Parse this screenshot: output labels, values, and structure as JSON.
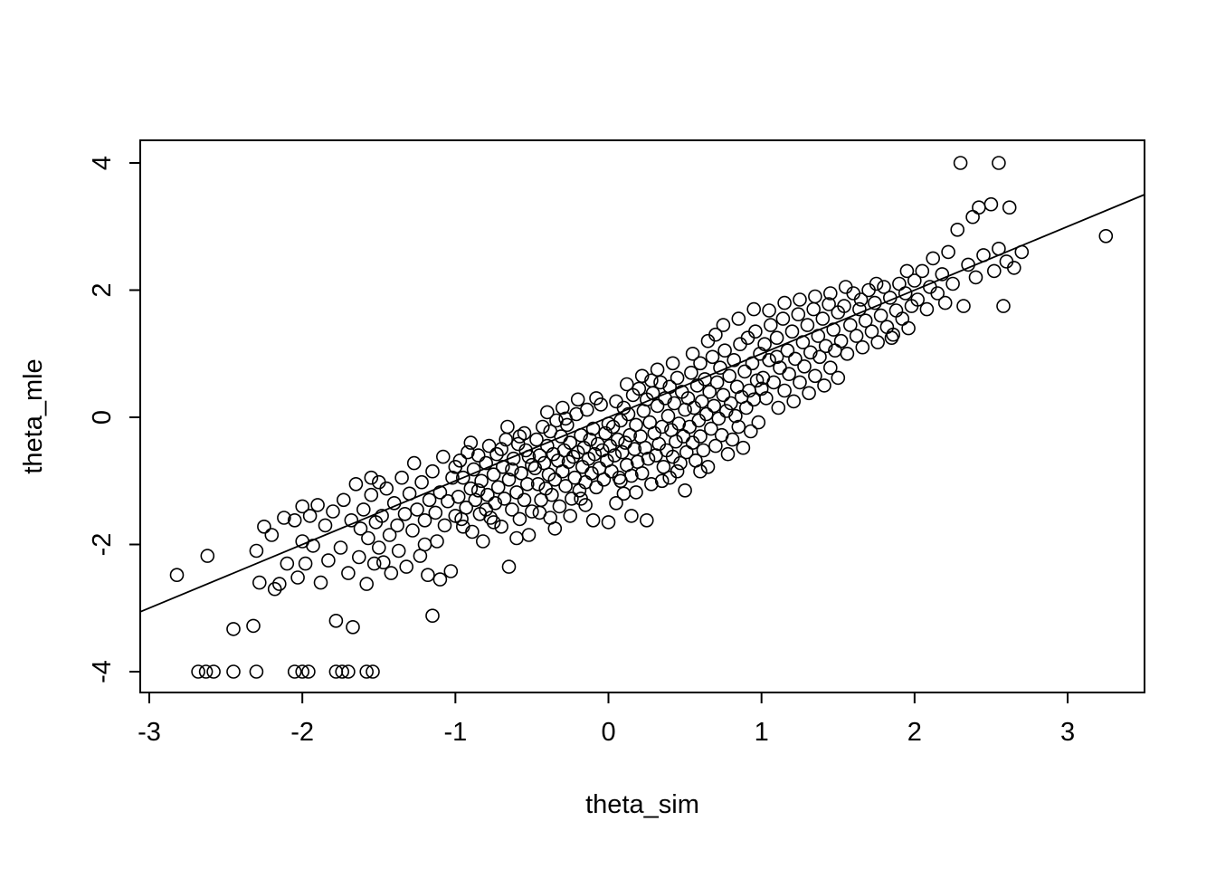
{
  "colors": {
    "foreground": "#000000",
    "background": "#ffffff"
  },
  "chart_data": {
    "type": "scatter",
    "title": "",
    "xlabel": "theta_sim",
    "ylabel": "theta_mle",
    "x_ticks": [
      -3,
      -2,
      -1,
      0,
      1,
      2,
      3
    ],
    "y_ticks": [
      -4,
      -2,
      0,
      2,
      4
    ],
    "xlim": [
      -3.06,
      3.5
    ],
    "ylim": [
      -4.33,
      4.36
    ],
    "grid": false,
    "legend": "none",
    "marker": "open-circle",
    "fit_line": {
      "description": "identity line y = x clipped to plot box",
      "x1": -3.06,
      "y1": -3.06,
      "x2": 3.5,
      "y2": 3.5
    },
    "clamped_floor_value": -4,
    "points": [
      [
        -2.82,
        -2.48
      ],
      [
        -2.62,
        -2.18
      ],
      [
        -2.45,
        -3.33
      ],
      [
        -2.32,
        -3.28
      ],
      [
        -2.3,
        -2.1
      ],
      [
        -2.28,
        -2.6
      ],
      [
        -2.2,
        -1.85
      ],
      [
        -2.18,
        -2.7
      ],
      [
        -2.12,
        -1.58
      ],
      [
        -2.1,
        -2.3
      ],
      [
        -2.05,
        -1.62
      ],
      [
        -2.03,
        -2.52
      ],
      [
        -2.0,
        -1.4
      ],
      [
        -2.0,
        -1.95
      ],
      [
        -2.15,
        -2.62
      ],
      [
        -2.25,
        -1.72
      ],
      [
        -1.98,
        -2.3
      ],
      [
        -1.95,
        -1.55
      ],
      [
        -1.93,
        -2.02
      ],
      [
        -1.9,
        -1.38
      ],
      [
        -1.88,
        -2.6
      ],
      [
        -1.85,
        -1.7
      ],
      [
        -1.83,
        -2.25
      ],
      [
        -1.8,
        -1.48
      ],
      [
        -1.78,
        -3.2
      ],
      [
        -1.75,
        -2.05
      ],
      [
        -1.73,
        -1.3
      ],
      [
        -1.7,
        -2.45
      ],
      [
        -1.68,
        -1.62
      ],
      [
        -1.67,
        -3.3
      ],
      [
        -1.65,
        -1.05
      ],
      [
        -1.63,
        -2.2
      ],
      [
        -1.6,
        -1.45
      ],
      [
        -1.58,
        -2.62
      ],
      [
        -1.57,
        -1.9
      ],
      [
        -1.55,
        -1.22
      ],
      [
        -1.53,
        -2.3
      ],
      [
        -1.52,
        -1.65
      ],
      [
        -1.5,
        -2.05
      ],
      [
        -1.5,
        -1.02
      ],
      [
        -1.55,
        -0.95
      ],
      [
        -1.62,
        -1.75
      ],
      [
        -1.48,
        -1.55
      ],
      [
        -1.47,
        -2.28
      ],
      [
        -1.45,
        -1.12
      ],
      [
        -1.43,
        -1.85
      ],
      [
        -1.42,
        -2.45
      ],
      [
        -1.4,
        -1.35
      ],
      [
        -1.38,
        -1.7
      ],
      [
        -1.37,
        -2.1
      ],
      [
        -1.35,
        -0.95
      ],
      [
        -1.33,
        -1.52
      ],
      [
        -1.32,
        -2.35
      ],
      [
        -1.3,
        -1.2
      ],
      [
        -1.28,
        -1.78
      ],
      [
        -1.27,
        -0.72
      ],
      [
        -1.25,
        -1.45
      ],
      [
        -1.23,
        -2.18
      ],
      [
        -1.22,
        -1.02
      ],
      [
        -1.2,
        -1.62
      ],
      [
        -1.18,
        -2.48
      ],
      [
        -1.17,
        -1.3
      ],
      [
        -1.15,
        -3.12
      ],
      [
        -1.15,
        -0.85
      ],
      [
        -1.13,
        -1.5
      ],
      [
        -1.12,
        -1.95
      ],
      [
        -1.1,
        -1.18
      ],
      [
        -1.08,
        -0.62
      ],
      [
        -1.07,
        -1.7
      ],
      [
        -1.05,
        -1.32
      ],
      [
        -1.03,
        -2.42
      ],
      [
        -1.02,
        -0.95
      ],
      [
        -1.0,
        -1.55
      ],
      [
        -1.0,
        -0.78
      ],
      [
        -1.1,
        -2.55
      ],
      [
        -1.2,
        -2.0
      ],
      [
        -0.98,
        -1.25
      ],
      [
        -0.97,
        -0.68
      ],
      [
        -0.96,
        -1.6
      ],
      [
        -0.95,
        -0.95
      ],
      [
        -0.93,
        -1.42
      ],
      [
        -0.92,
        -0.55
      ],
      [
        -0.9,
        -1.12
      ],
      [
        -0.89,
        -1.8
      ],
      [
        -0.88,
        -0.82
      ],
      [
        -0.87,
        -1.3
      ],
      [
        -0.85,
        -0.6
      ],
      [
        -0.84,
        -1.52
      ],
      [
        -0.83,
        -1.0
      ],
      [
        -0.82,
        -1.95
      ],
      [
        -0.8,
        -0.72
      ],
      [
        -0.79,
        -1.22
      ],
      [
        -0.78,
        -0.45
      ],
      [
        -0.77,
        -1.58
      ],
      [
        -0.75,
        -0.9
      ],
      [
        -0.74,
        -1.35
      ],
      [
        -0.73,
        -0.58
      ],
      [
        -0.72,
        -1.1
      ],
      [
        -0.7,
        -1.72
      ],
      [
        -0.69,
        -0.78
      ],
      [
        -0.68,
        -1.28
      ],
      [
        -0.67,
        -0.35
      ],
      [
        -0.65,
        -2.35
      ],
      [
        -0.65,
        -0.98
      ],
      [
        -0.63,
        -1.45
      ],
      [
        -0.62,
        -0.65
      ],
      [
        -0.6,
        -1.18
      ],
      [
        -0.59,
        -0.42
      ],
      [
        -0.58,
        -1.6
      ],
      [
        -0.57,
        -0.88
      ],
      [
        -0.55,
        -1.3
      ],
      [
        -0.54,
        -0.52
      ],
      [
        -0.53,
        -1.05
      ],
      [
        -0.52,
        -1.85
      ],
      [
        -0.5,
        -0.75
      ],
      [
        -0.5,
        -1.48
      ],
      [
        -0.55,
        -0.25
      ],
      [
        -0.6,
        -1.9
      ],
      [
        -0.66,
        -0.15
      ],
      [
        -0.7,
        -0.5
      ],
      [
        -0.75,
        -1.65
      ],
      [
        -0.8,
        -1.45
      ],
      [
        -0.85,
        -1.15
      ],
      [
        -0.9,
        -0.4
      ],
      [
        -0.95,
        -1.72
      ],
      [
        -0.63,
        -0.82
      ],
      [
        -0.58,
        -0.3
      ],
      [
        -0.52,
        -0.62
      ],
      [
        -0.48,
        -0.8
      ],
      [
        -0.47,
        -0.35
      ],
      [
        -0.46,
        -1.05
      ],
      [
        -0.45,
        -0.6
      ],
      [
        -0.44,
        -1.3
      ],
      [
        -0.43,
        -0.15
      ],
      [
        -0.42,
        -0.72
      ],
      [
        -0.41,
        -1.12
      ],
      [
        -0.4,
        -0.45
      ],
      [
        -0.39,
        -0.9
      ],
      [
        -0.38,
        -0.22
      ],
      [
        -0.37,
        -1.22
      ],
      [
        -0.36,
        -0.58
      ],
      [
        -0.35,
        -0.98
      ],
      [
        -0.34,
        -0.05
      ],
      [
        -0.33,
        -0.68
      ],
      [
        -0.32,
        -1.4
      ],
      [
        -0.31,
        -0.3
      ],
      [
        -0.3,
        -0.85
      ],
      [
        -0.29,
        -0.52
      ],
      [
        -0.28,
        -1.08
      ],
      [
        -0.27,
        -0.12
      ],
      [
        -0.26,
        -0.7
      ],
      [
        -0.25,
        -0.4
      ],
      [
        -0.24,
        -1.28
      ],
      [
        -0.23,
        -0.62
      ],
      [
        -0.22,
        -0.95
      ],
      [
        -0.21,
        0.05
      ],
      [
        -0.2,
        -0.55
      ],
      [
        -0.19,
        -1.15
      ],
      [
        -0.18,
        -0.28
      ],
      [
        -0.17,
        -0.78
      ],
      [
        -0.16,
        -0.48
      ],
      [
        -0.15,
        -1.02
      ],
      [
        -0.14,
        0.12
      ],
      [
        -0.13,
        -0.65
      ],
      [
        -0.12,
        -0.35
      ],
      [
        -0.11,
        -0.88
      ],
      [
        -0.1,
        -1.62
      ],
      [
        -0.1,
        -0.18
      ],
      [
        -0.09,
        -0.58
      ],
      [
        -0.08,
        -1.1
      ],
      [
        -0.07,
        -0.42
      ],
      [
        -0.06,
        -0.8
      ],
      [
        -0.05,
        0.2
      ],
      [
        -0.04,
        -0.52
      ],
      [
        -0.03,
        -0.98
      ],
      [
        -0.02,
        -0.25
      ],
      [
        -0.01,
        -0.68
      ],
      [
        0.0,
        -1.65
      ],
      [
        0.0,
        -0.1
      ],
      [
        -0.2,
        0.28
      ],
      [
        -0.25,
        -1.55
      ],
      [
        -0.3,
        0.15
      ],
      [
        -0.35,
        -1.75
      ],
      [
        -0.4,
        0.08
      ],
      [
        -0.45,
        -1.5
      ],
      [
        -0.15,
        -1.38
      ],
      [
        -0.08,
        0.3
      ],
      [
        -0.28,
        -0.02
      ],
      [
        -0.38,
        -1.58
      ],
      [
        -0.18,
        -1.28
      ],
      [
        0.01,
        -0.45
      ],
      [
        0.02,
        -0.85
      ],
      [
        0.03,
        -0.15
      ],
      [
        0.04,
        -0.6
      ],
      [
        0.05,
        0.25
      ],
      [
        0.06,
        -0.35
      ],
      [
        0.07,
        -0.95
      ],
      [
        0.08,
        -0.05
      ],
      [
        0.09,
        -0.55
      ],
      [
        0.1,
        -1.2
      ],
      [
        0.1,
        0.15
      ],
      [
        0.11,
        -0.4
      ],
      [
        0.12,
        -0.75
      ],
      [
        0.13,
        0.05
      ],
      [
        0.14,
        -0.28
      ],
      [
        0.15,
        -0.92
      ],
      [
        0.16,
        0.35
      ],
      [
        0.17,
        -0.5
      ],
      [
        0.18,
        -0.12
      ],
      [
        0.19,
        -0.7
      ],
      [
        0.2,
        0.45
      ],
      [
        0.21,
        -0.3
      ],
      [
        0.22,
        -0.88
      ],
      [
        0.23,
        0.1
      ],
      [
        0.24,
        -0.48
      ],
      [
        0.25,
        0.28
      ],
      [
        0.26,
        -0.65
      ],
      [
        0.27,
        -0.08
      ],
      [
        0.28,
        -1.05
      ],
      [
        0.29,
        0.38
      ],
      [
        0.3,
        -0.25
      ],
      [
        0.31,
        -0.6
      ],
      [
        0.32,
        0.18
      ],
      [
        0.33,
        -0.42
      ],
      [
        0.34,
        0.55
      ],
      [
        0.35,
        -0.15
      ],
      [
        0.36,
        -0.78
      ],
      [
        0.37,
        0.3
      ],
      [
        0.38,
        -0.52
      ],
      [
        0.39,
        0.02
      ],
      [
        0.4,
        -0.95
      ],
      [
        0.4,
        0.48
      ],
      [
        0.41,
        -0.2
      ],
      [
        0.42,
        -0.62
      ],
      [
        0.43,
        0.22
      ],
      [
        0.44,
        -0.38
      ],
      [
        0.45,
        0.62
      ],
      [
        0.46,
        -0.1
      ],
      [
        0.47,
        -0.72
      ],
      [
        0.48,
        0.4
      ],
      [
        0.49,
        -0.3
      ],
      [
        0.5,
        0.12
      ],
      [
        0.5,
        -1.15
      ],
      [
        0.05,
        -1.35
      ],
      [
        0.15,
        -1.55
      ],
      [
        0.25,
        -1.62
      ],
      [
        0.35,
        -1.0
      ],
      [
        0.45,
        -0.85
      ],
      [
        0.12,
        0.52
      ],
      [
        0.22,
        0.65
      ],
      [
        0.32,
        0.75
      ],
      [
        0.42,
        0.85
      ],
      [
        0.08,
        -1.0
      ],
      [
        0.18,
        -1.18
      ],
      [
        0.28,
        0.58
      ],
      [
        0.51,
        -0.55
      ],
      [
        0.52,
        0.3
      ],
      [
        0.53,
        -0.15
      ],
      [
        0.54,
        0.7
      ],
      [
        0.55,
        -0.4
      ],
      [
        0.56,
        0.15
      ],
      [
        0.57,
        -0.68
      ],
      [
        0.58,
        0.5
      ],
      [
        0.59,
        -0.05
      ],
      [
        0.6,
        0.85
      ],
      [
        0.6,
        -0.3
      ],
      [
        0.61,
        0.25
      ],
      [
        0.62,
        -0.52
      ],
      [
        0.63,
        0.6
      ],
      [
        0.64,
        0.05
      ],
      [
        0.65,
        -0.78
      ],
      [
        0.66,
        0.4
      ],
      [
        0.67,
        -0.18
      ],
      [
        0.68,
        0.95
      ],
      [
        0.69,
        0.18
      ],
      [
        0.7,
        -0.45
      ],
      [
        0.71,
        0.55
      ],
      [
        0.72,
        -0.02
      ],
      [
        0.73,
        0.78
      ],
      [
        0.74,
        -0.28
      ],
      [
        0.75,
        0.35
      ],
      [
        0.76,
        1.05
      ],
      [
        0.77,
        0.1
      ],
      [
        0.78,
        -0.58
      ],
      [
        0.79,
        0.65
      ],
      [
        0.8,
        0.22
      ],
      [
        0.81,
        -0.35
      ],
      [
        0.82,
        0.9
      ],
      [
        0.83,
        0.02
      ],
      [
        0.84,
        0.48
      ],
      [
        0.85,
        -0.15
      ],
      [
        0.86,
        1.15
      ],
      [
        0.87,
        0.32
      ],
      [
        0.88,
        -0.48
      ],
      [
        0.89,
        0.72
      ],
      [
        0.9,
        0.15
      ],
      [
        0.91,
        1.25
      ],
      [
        0.92,
        0.42
      ],
      [
        0.93,
        -0.22
      ],
      [
        0.94,
        0.85
      ],
      [
        0.95,
        0.28
      ],
      [
        0.96,
        1.35
      ],
      [
        0.97,
        0.58
      ],
      [
        0.98,
        -0.08
      ],
      [
        0.99,
        1.0
      ],
      [
        1.0,
        0.45
      ],
      [
        0.55,
        1.0
      ],
      [
        0.65,
        1.2
      ],
      [
        0.75,
        1.45
      ],
      [
        0.85,
        1.55
      ],
      [
        0.95,
        1.7
      ],
      [
        0.7,
        1.3
      ],
      [
        0.6,
        -0.85
      ],
      [
        1.01,
        0.62
      ],
      [
        1.02,
        1.15
      ],
      [
        1.03,
        0.3
      ],
      [
        1.05,
        0.9
      ],
      [
        1.06,
        1.45
      ],
      [
        1.08,
        0.55
      ],
      [
        1.1,
        1.25
      ],
      [
        1.11,
        0.15
      ],
      [
        1.12,
        0.78
      ],
      [
        1.14,
        1.55
      ],
      [
        1.15,
        0.42
      ],
      [
        1.17,
        1.05
      ],
      [
        1.18,
        0.68
      ],
      [
        1.2,
        1.35
      ],
      [
        1.21,
        0.25
      ],
      [
        1.22,
        0.92
      ],
      [
        1.24,
        1.62
      ],
      [
        1.25,
        0.55
      ],
      [
        1.27,
        1.18
      ],
      [
        1.28,
        0.8
      ],
      [
        1.3,
        1.45
      ],
      [
        1.31,
        0.38
      ],
      [
        1.32,
        1.02
      ],
      [
        1.34,
        1.7
      ],
      [
        1.35,
        0.65
      ],
      [
        1.37,
        1.28
      ],
      [
        1.38,
        0.95
      ],
      [
        1.4,
        1.55
      ],
      [
        1.41,
        0.5
      ],
      [
        1.42,
        1.12
      ],
      [
        1.44,
        1.78
      ],
      [
        1.45,
        0.78
      ],
      [
        1.47,
        1.38
      ],
      [
        1.48,
        1.05
      ],
      [
        1.5,
        1.65
      ],
      [
        1.5,
        0.62
      ],
      [
        1.05,
        1.68
      ],
      [
        1.15,
        1.8
      ],
      [
        1.25,
        1.85
      ],
      [
        1.35,
        1.9
      ],
      [
        1.45,
        1.95
      ],
      [
        1.1,
        0.95
      ],
      [
        1.52,
        1.2
      ],
      [
        1.54,
        1.75
      ],
      [
        1.56,
        1.0
      ],
      [
        1.58,
        1.45
      ],
      [
        1.6,
        1.95
      ],
      [
        1.62,
        1.28
      ],
      [
        1.64,
        1.7
      ],
      [
        1.66,
        1.1
      ],
      [
        1.68,
        1.52
      ],
      [
        1.7,
        2.0
      ],
      [
        1.72,
        1.35
      ],
      [
        1.74,
        1.8
      ],
      [
        1.76,
        1.18
      ],
      [
        1.78,
        1.6
      ],
      [
        1.8,
        2.05
      ],
      [
        1.82,
        1.42
      ],
      [
        1.84,
        1.88
      ],
      [
        1.86,
        1.3
      ],
      [
        1.88,
        1.68
      ],
      [
        1.9,
        2.1
      ],
      [
        1.92,
        1.55
      ],
      [
        1.94,
        1.95
      ],
      [
        1.96,
        1.4
      ],
      [
        1.98,
        1.75
      ],
      [
        2.0,
        2.15
      ],
      [
        1.55,
        2.05
      ],
      [
        1.65,
        1.85
      ],
      [
        1.75,
        2.1
      ],
      [
        1.85,
        1.25
      ],
      [
        1.95,
        2.3
      ],
      [
        2.02,
        1.85
      ],
      [
        2.05,
        2.3
      ],
      [
        2.08,
        1.7
      ],
      [
        2.1,
        2.05
      ],
      [
        2.12,
        2.5
      ],
      [
        2.15,
        1.95
      ],
      [
        2.18,
        2.25
      ],
      [
        2.2,
        1.8
      ],
      [
        2.22,
        2.6
      ],
      [
        2.25,
        2.1
      ],
      [
        2.28,
        2.95
      ],
      [
        2.3,
        4.0
      ],
      [
        2.32,
        1.75
      ],
      [
        2.35,
        2.4
      ],
      [
        2.38,
        3.15
      ],
      [
        2.4,
        2.2
      ],
      [
        2.42,
        3.3
      ],
      [
        2.45,
        2.55
      ],
      [
        2.5,
        3.35
      ],
      [
        2.55,
        4.0
      ],
      [
        2.52,
        2.3
      ],
      [
        2.55,
        2.65
      ],
      [
        2.58,
        1.75
      ],
      [
        2.6,
        2.45
      ],
      [
        2.62,
        3.3
      ],
      [
        2.65,
        2.35
      ],
      [
        2.7,
        2.6
      ],
      [
        3.25,
        2.85
      ],
      [
        -2.68,
        -4
      ],
      [
        -2.63,
        -4
      ],
      [
        -2.58,
        -4
      ],
      [
        -2.45,
        -4
      ],
      [
        -2.3,
        -4
      ],
      [
        -2.05,
        -4
      ],
      [
        -2.0,
        -4
      ],
      [
        -1.96,
        -4
      ],
      [
        -1.78,
        -4
      ],
      [
        -1.74,
        -4
      ],
      [
        -1.7,
        -4
      ],
      [
        -1.58,
        -4
      ],
      [
        -1.54,
        -4
      ]
    ]
  }
}
